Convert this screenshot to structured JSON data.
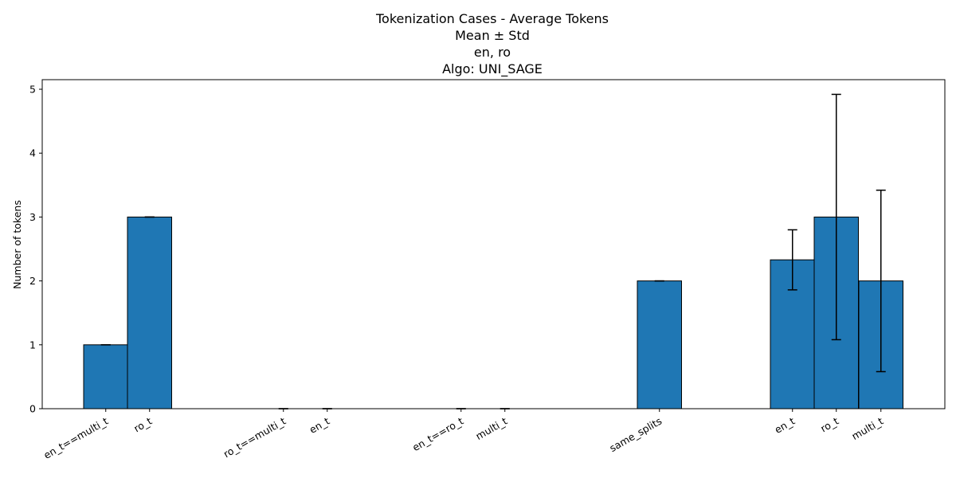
{
  "chart_data": {
    "type": "bar",
    "title_lines": [
      "Tokenization Cases - Average Tokens",
      "Mean ± Std",
      "en, ro",
      "Algo: UNI_SAGE"
    ],
    "xlabel": "",
    "ylabel": "Number of tokens",
    "ylim": [
      0,
      5.15
    ],
    "yticks": [
      0,
      1,
      2,
      3,
      4,
      5
    ],
    "bar_color": "#1f77b4",
    "edge_color": "#000000",
    "grid": false,
    "bars": [
      {
        "label": "en_t==multi_t",
        "mean": 1.0,
        "std": 0.0
      },
      {
        "label": "ro_t",
        "mean": 3.0,
        "std": 0.0
      },
      {
        "label": "ro_t==multi_t",
        "mean": 0.0,
        "std": 0.0
      },
      {
        "label": "en_t",
        "mean": 0.0,
        "std": 0.0
      },
      {
        "label": "en_t==ro_t",
        "mean": 0.0,
        "std": 0.0
      },
      {
        "label": "multi_t",
        "mean": 0.0,
        "std": 0.0
      },
      {
        "label": "same_splits",
        "mean": 2.0,
        "std": 0.0
      },
      {
        "label": "en_t",
        "mean": 2.33,
        "std": 0.47
      },
      {
        "label": "ro_t",
        "mean": 3.0,
        "std": 1.92
      },
      {
        "label": "multi_t",
        "mean": 2.0,
        "std": 1.42
      }
    ]
  }
}
